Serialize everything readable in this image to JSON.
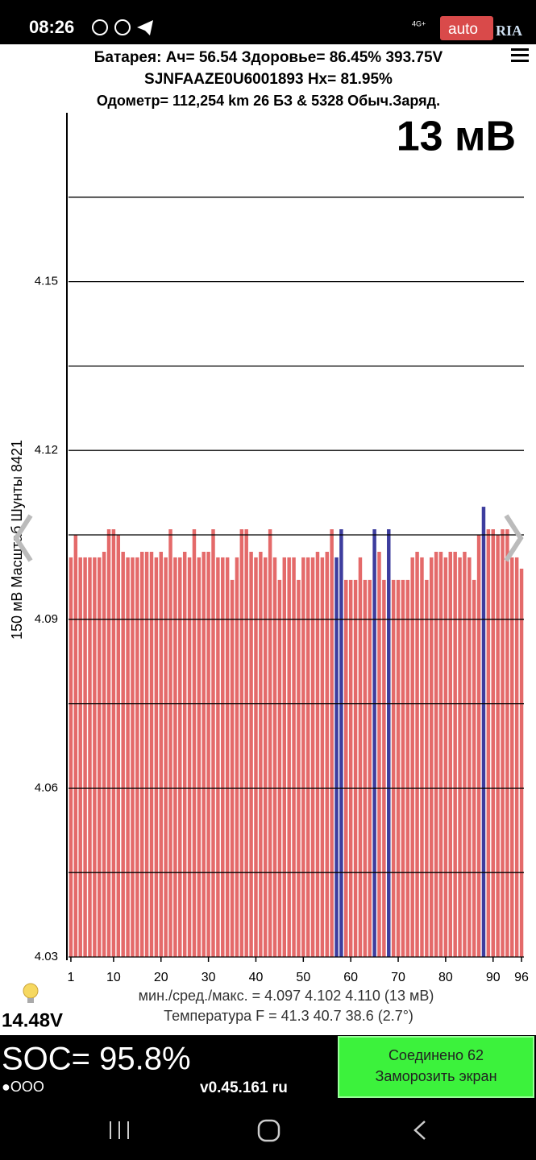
{
  "status_bar": {
    "time": "08:26",
    "network": "4G+",
    "watermark": "auto",
    "watermark_brand": "RIA"
  },
  "header": {
    "line1": "Батарея:  Ач= 56.54  Здоровье= 86.45%   393.75V",
    "line2": "SJNFAAZE0U6001893  Hx= 81.95%",
    "line3": "Одометр= 112,254 km 26 БЗ & 5328 Обыч.Заряд.",
    "delta": "13 мВ"
  },
  "chart_data": {
    "type": "bar",
    "y_label": "150 мВ Масштаб  Шунты 8421",
    "x": [
      1,
      2,
      3,
      4,
      5,
      6,
      7,
      8,
      9,
      10,
      11,
      12,
      13,
      14,
      15,
      16,
      17,
      18,
      19,
      20,
      21,
      22,
      23,
      24,
      25,
      26,
      27,
      28,
      29,
      30,
      31,
      32,
      33,
      34,
      35,
      36,
      37,
      38,
      39,
      40,
      41,
      42,
      43,
      44,
      45,
      46,
      47,
      48,
      49,
      50,
      51,
      52,
      53,
      54,
      55,
      56,
      57,
      58,
      59,
      60,
      61,
      62,
      63,
      64,
      65,
      66,
      67,
      68,
      69,
      70,
      71,
      72,
      73,
      74,
      75,
      76,
      77,
      78,
      79,
      80,
      81,
      82,
      83,
      84,
      85,
      86,
      87,
      88,
      89,
      90,
      91,
      92,
      93,
      94,
      95,
      96
    ],
    "values": [
      4.101,
      4.105,
      4.101,
      4.101,
      4.101,
      4.101,
      4.101,
      4.102,
      4.106,
      4.106,
      4.105,
      4.102,
      4.101,
      4.101,
      4.101,
      4.102,
      4.102,
      4.102,
      4.101,
      4.102,
      4.101,
      4.106,
      4.101,
      4.101,
      4.102,
      4.101,
      4.106,
      4.101,
      4.102,
      4.102,
      4.106,
      4.101,
      4.101,
      4.101,
      4.097,
      4.101,
      4.106,
      4.106,
      4.102,
      4.101,
      4.102,
      4.101,
      4.106,
      4.101,
      4.097,
      4.101,
      4.101,
      4.101,
      4.097,
      4.101,
      4.101,
      4.101,
      4.102,
      4.101,
      4.102,
      4.106,
      4.101,
      4.106,
      4.097,
      4.097,
      4.097,
      4.101,
      4.097,
      4.097,
      4.106,
      4.102,
      4.097,
      4.106,
      4.097,
      4.097,
      4.097,
      4.097,
      4.101,
      4.102,
      4.101,
      4.097,
      4.101,
      4.102,
      4.102,
      4.101,
      4.102,
      4.102,
      4.101,
      4.102,
      4.101,
      4.097,
      4.105,
      4.11,
      4.106,
      4.106,
      4.105,
      4.106,
      4.106,
      4.101,
      4.101,
      4.099
    ],
    "color": "#e46a6a",
    "highlight_color": "#3d3d9e",
    "highlighted": [
      57,
      58,
      65,
      68,
      88
    ],
    "xlim": [
      0.5,
      96.5
    ],
    "xticks": [
      1,
      10,
      20,
      30,
      40,
      50,
      60,
      70,
      80,
      90,
      96
    ],
    "ylim": [
      4.03,
      4.18
    ],
    "yticks": [
      4.03,
      4.06,
      4.09,
      4.12,
      4.15
    ],
    "ygrid_minor": [
      4.045,
      4.075,
      4.105,
      4.135,
      4.165
    ],
    "grid": true
  },
  "footer": {
    "stats": "мин./сред./макс. = 4.097 4.102 4.110  (13 мВ)",
    "temperature": "Температура F = 41.3  40.7  38.6  (2.7°)",
    "pack_voltage": "14.48V",
    "soc": "SOC= 95.8%",
    "indicator": "●OOO",
    "version": "v0.45.161 ru",
    "button_line1": "Соединено 62",
    "button_line2": "Заморозить экран"
  }
}
